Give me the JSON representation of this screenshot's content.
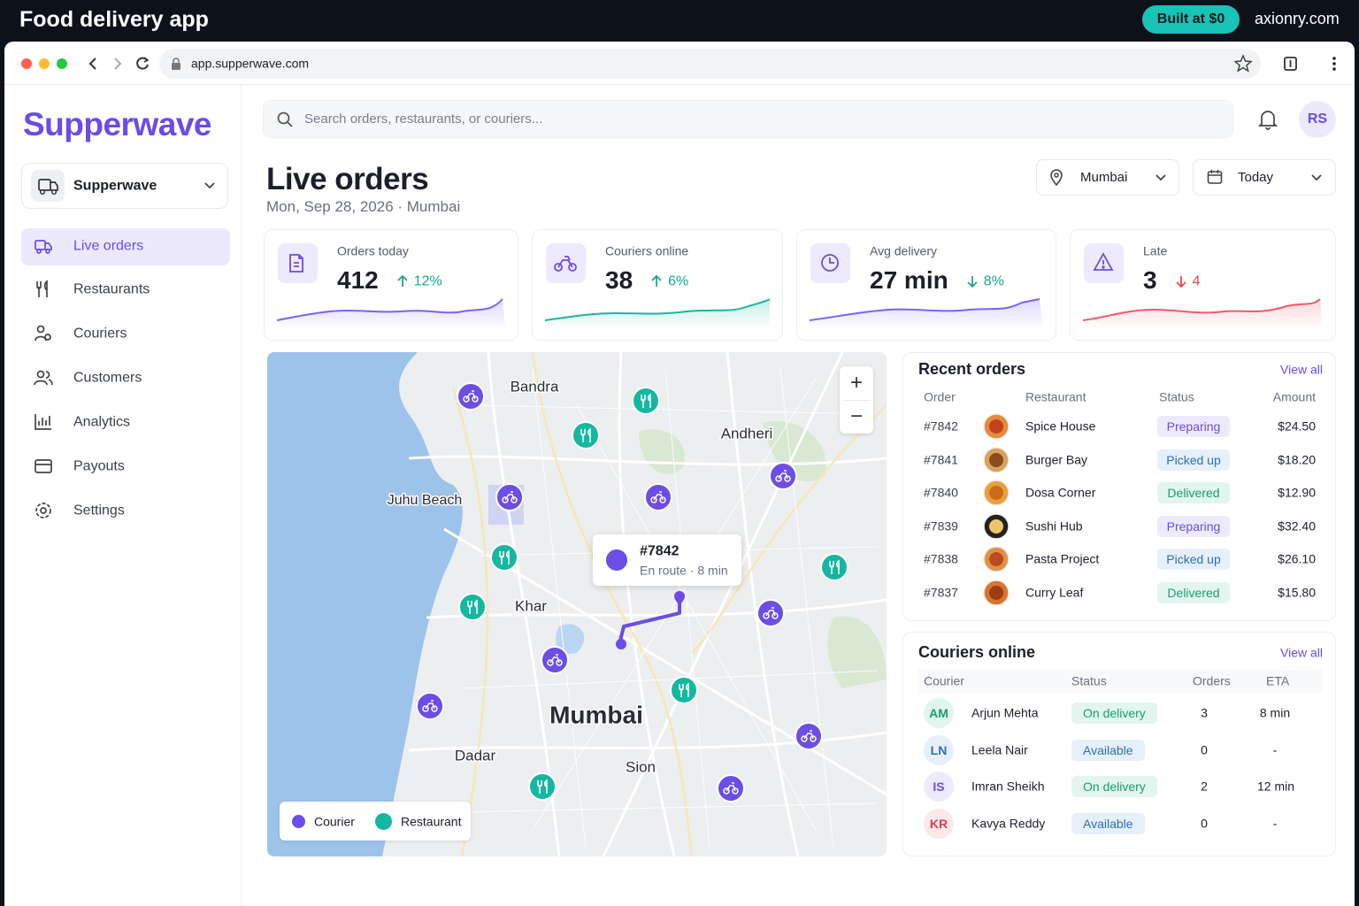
{
  "banner": {
    "title": "Food delivery app",
    "badge": "Built at $0",
    "site": "axionry.com"
  },
  "browser": {
    "url": "app.supperwave.com"
  },
  "sidebar": {
    "brand": "Supperwave",
    "workspace": "Supperwave",
    "nav": [
      "Live orders",
      "Restaurants",
      "Couriers",
      "Customers",
      "Analytics",
      "Payouts",
      "Settings"
    ],
    "active": 0
  },
  "topbar": {
    "search_placeholder": "Search orders, restaurants, or couriers...",
    "avatar": "RS"
  },
  "header": {
    "title": "Live orders",
    "subtitle": "Mon, Sep 28, 2026 · Mumbai",
    "city": "Mumbai",
    "period": "Today"
  },
  "kpis": [
    {
      "label": "Orders today",
      "value": 412,
      "change": "12%",
      "direction": "up",
      "tone": "good",
      "color": "#7b61ff"
    },
    {
      "label": "Couriers online",
      "value": 38,
      "change": "6%",
      "direction": "up",
      "tone": "good",
      "color": "#19b89f"
    },
    {
      "label": "Avg delivery",
      "value": "27 min",
      "change": "8%",
      "direction": "down",
      "tone": "good",
      "color": "#7b61ff"
    },
    {
      "label": "Late",
      "value": 3,
      "change": 4,
      "direction": "down",
      "tone": "bad",
      "color": "#ef5b6b"
    }
  ],
  "map": {
    "places": [
      "Bandra",
      "Andheri",
      "Juhu Beach",
      "Khar",
      "Mumbai",
      "Dadar",
      "Sion"
    ],
    "tooltip": {
      "order": "#7842",
      "detail": "En route · 8 min"
    },
    "zoom_in": "+",
    "zoom_out": "−",
    "legend": [
      "Courier",
      "Restaurant"
    ]
  },
  "recent_orders": {
    "title": "Recent orders",
    "view_all": "View all",
    "columns": [
      "Order",
      "Restaurant",
      "Status",
      "Amount"
    ],
    "rows": [
      {
        "order": "#7842",
        "restaurant": "Spice House",
        "status": "Preparing",
        "status_tone": "purple",
        "amount": "$24.50"
      },
      {
        "order": "#7841",
        "restaurant": "Burger Bay",
        "status": "Picked up",
        "status_tone": "blue",
        "amount": "$18.20"
      },
      {
        "order": "#7840",
        "restaurant": "Dosa Corner",
        "status": "Delivered",
        "status_tone": "green",
        "amount": "$12.90"
      },
      {
        "order": "#7839",
        "restaurant": "Sushi Hub",
        "status": "Preparing",
        "status_tone": "purple",
        "amount": "$32.40"
      },
      {
        "order": "#7838",
        "restaurant": "Pasta Project",
        "status": "Picked up",
        "status_tone": "blue",
        "amount": "$26.10"
      },
      {
        "order": "#7837",
        "restaurant": "Curry Leaf",
        "status": "Delivered",
        "status_tone": "green",
        "amount": "$15.80"
      }
    ]
  },
  "couriers": {
    "title": "Couriers online",
    "view_all": "View all",
    "columns": [
      "Courier",
      "Status",
      "Orders",
      "ETA"
    ],
    "rows": [
      {
        "initials": "AM",
        "name": "Arjun Mehta",
        "status": "On delivery",
        "status_tone": "green",
        "orders": 3,
        "eta": "8 min",
        "color": "green"
      },
      {
        "initials": "LN",
        "name": "Leela Nair",
        "status": "Available",
        "status_tone": "blue",
        "orders": 0,
        "eta": "-",
        "color": "blue"
      },
      {
        "initials": "IS",
        "name": "Imran Sheikh",
        "status": "On delivery",
        "status_tone": "green",
        "orders": 2,
        "eta": "12 min",
        "color": "purple"
      },
      {
        "initials": "KR",
        "name": "Kavya Reddy",
        "status": "Available",
        "status_tone": "blue",
        "orders": 0,
        "eta": "-",
        "color": "red"
      }
    ]
  }
}
